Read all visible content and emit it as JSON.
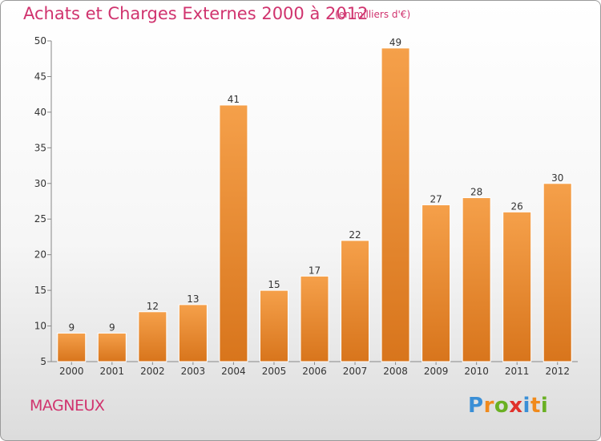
{
  "chart_data": {
    "type": "bar",
    "title": "Achats et Charges Externes 2000 à 2012",
    "subtitle": "(en milliers d'€)",
    "categories": [
      "2000",
      "2001",
      "2002",
      "2003",
      "2004",
      "2005",
      "2006",
      "2007",
      "2008",
      "2009",
      "2010",
      "2011",
      "2012"
    ],
    "values": [
      9,
      9,
      12,
      13,
      41,
      15,
      17,
      22,
      49,
      27,
      28,
      26,
      30
    ],
    "ylim": [
      5,
      50
    ],
    "yticks": [
      5,
      10,
      15,
      20,
      25,
      30,
      35,
      40,
      45,
      50
    ],
    "grid": false,
    "bar_color": "#f5a04a",
    "bar_color_dark": "#d8751c"
  },
  "commune": "MAGNEUX",
  "logo": {
    "text": "Proxiti",
    "letters": [
      {
        "char": "P",
        "color": "#3a8fd6"
      },
      {
        "char": "r",
        "color": "#f08a1c"
      },
      {
        "char": "o",
        "color": "#6ab023"
      },
      {
        "char": "x",
        "color": "#e0312b"
      },
      {
        "char": "i",
        "color": "#3a8fd6"
      },
      {
        "char": "t",
        "color": "#f08a1c"
      },
      {
        "char": "i",
        "color": "#6ab023"
      }
    ]
  }
}
